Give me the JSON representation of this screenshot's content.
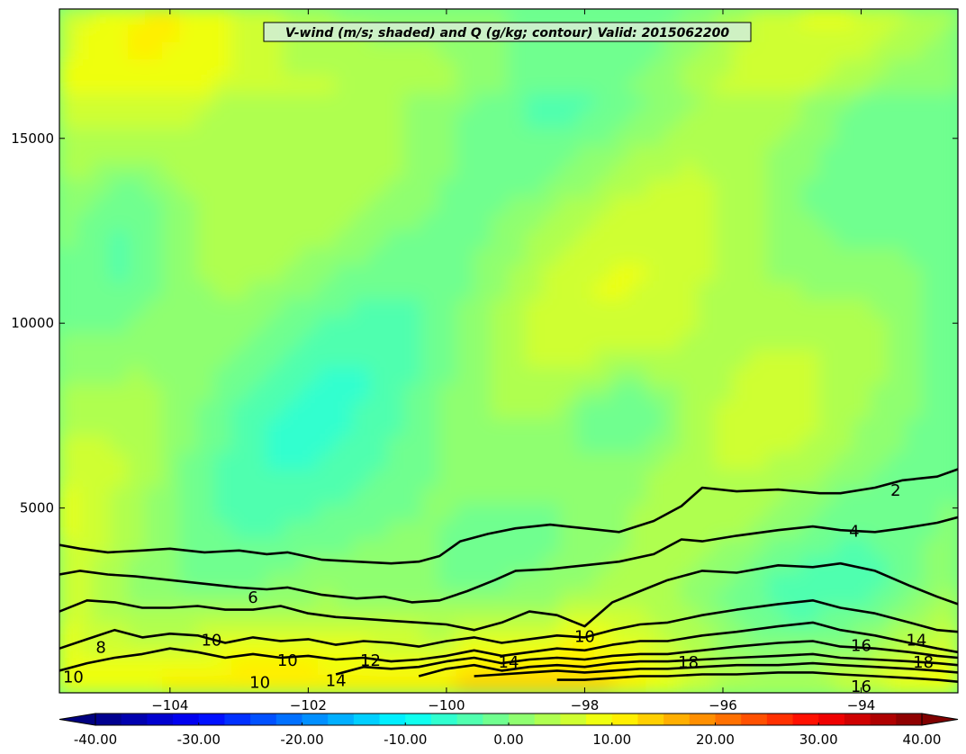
{
  "chart_data": {
    "type": "heatmap",
    "title": "V-wind (m/s; shaded) and Q (g/kg; contour) Valid: 2015062200",
    "xlabel": "",
    "ylabel": "",
    "xlim": [
      -105.6,
      -92.6
    ],
    "ylim": [
      0,
      18500
    ],
    "x_ticks": [
      -104,
      -102,
      -100,
      -98,
      -96,
      -94
    ],
    "x_tick_labels": [
      "−104",
      "−102",
      "−100",
      "−98",
      "−96",
      "−94"
    ],
    "y_ticks": [
      5000,
      10000,
      15000
    ],
    "y_tick_labels": [
      "5000",
      "10000",
      "15000"
    ],
    "shaded_variable": "V-wind (m/s)",
    "contour_variable": "Q (g/kg)",
    "colorbar": {
      "range": [
        -40,
        40
      ],
      "step": 2.5,
      "tick_values": [
        -40,
        -30,
        -20,
        -10,
        0,
        10,
        20,
        30,
        40
      ],
      "tick_labels": [
        "-40.00",
        "-30.00",
        "-20.00",
        "-10.00",
        "0.00",
        "10.00",
        "20.00",
        "30.00",
        "40.00"
      ],
      "colormap": "jet",
      "extend": "both"
    },
    "contours": [
      {
        "level": 2,
        "label": "2",
        "points": [
          [
            -105.6,
            4000
          ],
          [
            -105.3,
            3900
          ],
          [
            -104.9,
            3800
          ],
          [
            -104.4,
            3850
          ],
          [
            -104.0,
            3900
          ],
          [
            -103.5,
            3800
          ],
          [
            -103.0,
            3850
          ],
          [
            -102.6,
            3750
          ],
          [
            -102.3,
            3800
          ],
          [
            -101.8,
            3600
          ],
          [
            -101.3,
            3550
          ],
          [
            -100.8,
            3500
          ],
          [
            -100.4,
            3550
          ],
          [
            -100.1,
            3700
          ],
          [
            -99.8,
            4100
          ],
          [
            -99.4,
            4300
          ],
          [
            -99.0,
            4450
          ],
          [
            -98.5,
            4550
          ],
          [
            -98.0,
            4450
          ],
          [
            -97.5,
            4350
          ],
          [
            -97.0,
            4650
          ],
          [
            -96.6,
            5050
          ],
          [
            -96.3,
            5550
          ],
          [
            -95.8,
            5450
          ],
          [
            -95.2,
            5500
          ],
          [
            -94.6,
            5400
          ],
          [
            -94.3,
            5400
          ],
          [
            -93.8,
            5550
          ],
          [
            -93.4,
            5750
          ],
          [
            -92.9,
            5850
          ],
          [
            -92.6,
            6050
          ]
        ]
      },
      {
        "level": 4,
        "label": "4",
        "points": [
          [
            -105.6,
            3200
          ],
          [
            -105.3,
            3300
          ],
          [
            -104.9,
            3200
          ],
          [
            -104.5,
            3150
          ],
          [
            -104.0,
            3050
          ],
          [
            -103.5,
            2950
          ],
          [
            -103.0,
            2850
          ],
          [
            -102.6,
            2800
          ],
          [
            -102.3,
            2850
          ],
          [
            -101.8,
            2650
          ],
          [
            -101.3,
            2550
          ],
          [
            -100.9,
            2600
          ],
          [
            -100.5,
            2450
          ],
          [
            -100.1,
            2500
          ],
          [
            -99.7,
            2750
          ],
          [
            -99.3,
            3050
          ],
          [
            -99.0,
            3300
          ],
          [
            -98.5,
            3350
          ],
          [
            -98.0,
            3450
          ],
          [
            -97.5,
            3550
          ],
          [
            -97.0,
            3750
          ],
          [
            -96.6,
            4150
          ],
          [
            -96.3,
            4100
          ],
          [
            -95.8,
            4250
          ],
          [
            -95.2,
            4400
          ],
          [
            -94.7,
            4500
          ],
          [
            -94.3,
            4400
          ],
          [
            -93.8,
            4350
          ],
          [
            -93.4,
            4450
          ],
          [
            -92.9,
            4600
          ],
          [
            -92.6,
            4750
          ]
        ]
      },
      {
        "level": 6,
        "label": "6",
        "points": [
          [
            -105.6,
            2200
          ],
          [
            -105.2,
            2500
          ],
          [
            -104.8,
            2450
          ],
          [
            -104.4,
            2300
          ],
          [
            -104.0,
            2300
          ],
          [
            -103.6,
            2350
          ],
          [
            -103.2,
            2250
          ],
          [
            -102.8,
            2250
          ],
          [
            -102.4,
            2350
          ],
          [
            -102.0,
            2150
          ],
          [
            -101.6,
            2050
          ],
          [
            -101.2,
            2000
          ],
          [
            -100.8,
            1950
          ],
          [
            -100.4,
            1900
          ],
          [
            -100.0,
            1850
          ],
          [
            -99.6,
            1700
          ],
          [
            -99.2,
            1900
          ],
          [
            -98.8,
            2200
          ],
          [
            -98.4,
            2100
          ],
          [
            -98.0,
            1800
          ],
          [
            -97.6,
            2450
          ],
          [
            -97.2,
            2750
          ],
          [
            -96.8,
            3050
          ],
          [
            -96.3,
            3300
          ],
          [
            -95.8,
            3250
          ],
          [
            -95.2,
            3450
          ],
          [
            -94.7,
            3400
          ],
          [
            -94.3,
            3500
          ],
          [
            -93.8,
            3300
          ],
          [
            -93.3,
            2900
          ],
          [
            -92.9,
            2600
          ],
          [
            -92.6,
            2400
          ]
        ]
      },
      {
        "level": 8,
        "label": "8",
        "points": [
          [
            -105.6,
            1200
          ],
          [
            -105.2,
            1450
          ],
          [
            -104.8,
            1700
          ],
          [
            -104.4,
            1500
          ],
          [
            -104.0,
            1600
          ],
          [
            -103.6,
            1550
          ],
          [
            -103.2,
            1350
          ],
          [
            -102.8,
            1500
          ],
          [
            -102.4,
            1400
          ],
          [
            -102.0,
            1450
          ],
          [
            -101.6,
            1300
          ],
          [
            -101.2,
            1400
          ],
          [
            -100.8,
            1350
          ],
          [
            -100.4,
            1250
          ],
          [
            -100.0,
            1400
          ],
          [
            -99.6,
            1500
          ],
          [
            -99.2,
            1350
          ],
          [
            -98.8,
            1450
          ],
          [
            -98.4,
            1550
          ],
          [
            -98.0,
            1500
          ],
          [
            -97.6,
            1700
          ],
          [
            -97.2,
            1850
          ],
          [
            -96.8,
            1900
          ],
          [
            -96.3,
            2100
          ],
          [
            -95.8,
            2250
          ],
          [
            -95.2,
            2400
          ],
          [
            -94.7,
            2500
          ],
          [
            -94.3,
            2300
          ],
          [
            -93.8,
            2150
          ],
          [
            -93.3,
            1900
          ],
          [
            -92.9,
            1700
          ],
          [
            -92.6,
            1650
          ]
        ]
      },
      {
        "level": 10,
        "label": "10",
        "points": [
          [
            -105.6,
            600
          ],
          [
            -105.2,
            800
          ],
          [
            -104.8,
            950
          ],
          [
            -104.4,
            1050
          ],
          [
            -104.0,
            1200
          ],
          [
            -103.6,
            1100
          ],
          [
            -103.2,
            950
          ],
          [
            -102.8,
            1050
          ],
          [
            -102.4,
            950
          ],
          [
            -102.0,
            1000
          ],
          [
            -101.6,
            900
          ],
          [
            -101.2,
            950
          ],
          [
            -100.8,
            850
          ],
          [
            -100.4,
            900
          ],
          [
            -100.0,
            1000
          ],
          [
            -99.6,
            1150
          ],
          [
            -99.2,
            1000
          ],
          [
            -98.8,
            1100
          ],
          [
            -98.4,
            1200
          ],
          [
            -98.0,
            1150
          ],
          [
            -97.6,
            1300
          ],
          [
            -97.2,
            1400
          ],
          [
            -96.8,
            1400
          ],
          [
            -96.3,
            1550
          ],
          [
            -95.8,
            1650
          ],
          [
            -95.2,
            1800
          ],
          [
            -94.7,
            1900
          ],
          [
            -94.3,
            1700
          ],
          [
            -93.8,
            1550
          ],
          [
            -93.3,
            1350
          ],
          [
            -92.9,
            1200
          ],
          [
            -92.6,
            1100
          ]
        ]
      },
      {
        "level": 12,
        "label": "12",
        "points": [
          [
            -101.6,
            500
          ],
          [
            -101.2,
            700
          ],
          [
            -100.8,
            650
          ],
          [
            -100.4,
            700
          ],
          [
            -100.0,
            850
          ],
          [
            -99.6,
            950
          ],
          [
            -99.2,
            800
          ],
          [
            -98.8,
            900
          ],
          [
            -98.4,
            950
          ],
          [
            -98.0,
            900
          ],
          [
            -97.6,
            1000
          ],
          [
            -97.2,
            1050
          ],
          [
            -96.8,
            1050
          ],
          [
            -96.3,
            1150
          ],
          [
            -95.8,
            1250
          ],
          [
            -95.2,
            1350
          ],
          [
            -94.7,
            1400
          ],
          [
            -94.3,
            1250
          ],
          [
            -93.8,
            1200
          ],
          [
            -93.3,
            1100
          ],
          [
            -92.9,
            1000
          ],
          [
            -92.6,
            950
          ]
        ]
      },
      {
        "level": 14,
        "label": "14",
        "points": [
          [
            -100.4,
            450
          ],
          [
            -100.0,
            650
          ],
          [
            -99.6,
            750
          ],
          [
            -99.2,
            600
          ],
          [
            -98.8,
            700
          ],
          [
            -98.4,
            750
          ],
          [
            -98.0,
            700
          ],
          [
            -97.6,
            800
          ],
          [
            -97.2,
            850
          ],
          [
            -96.8,
            850
          ],
          [
            -96.3,
            900
          ],
          [
            -95.8,
            950
          ],
          [
            -95.2,
            1000
          ],
          [
            -94.7,
            1050
          ],
          [
            -94.3,
            950
          ],
          [
            -93.8,
            900
          ],
          [
            -93.3,
            850
          ],
          [
            -92.9,
            800
          ],
          [
            -92.6,
            750
          ]
        ]
      },
      {
        "level": 16,
        "label": "16",
        "points": [
          [
            -99.6,
            450
          ],
          [
            -99.2,
            500
          ],
          [
            -98.8,
            550
          ],
          [
            -98.4,
            600
          ],
          [
            -98.0,
            550
          ],
          [
            -97.6,
            600
          ],
          [
            -97.2,
            650
          ],
          [
            -96.8,
            650
          ],
          [
            -96.3,
            700
          ],
          [
            -95.8,
            750
          ],
          [
            -95.2,
            750
          ],
          [
            -94.7,
            800
          ],
          [
            -94.3,
            750
          ],
          [
            -93.8,
            700
          ],
          [
            -93.3,
            650
          ],
          [
            -92.9,
            600
          ],
          [
            -92.6,
            550
          ]
        ]
      },
      {
        "level": 18,
        "label": "18",
        "points": [
          [
            -98.4,
            350
          ],
          [
            -98.0,
            350
          ],
          [
            -97.6,
            400
          ],
          [
            -97.2,
            450
          ],
          [
            -96.8,
            450
          ],
          [
            -96.3,
            500
          ],
          [
            -95.8,
            500
          ],
          [
            -95.2,
            550
          ],
          [
            -94.7,
            550
          ],
          [
            -94.3,
            500
          ],
          [
            -93.8,
            450
          ],
          [
            -93.3,
            400
          ],
          [
            -92.9,
            350
          ],
          [
            -92.6,
            300
          ]
        ]
      }
    ],
    "contour_labels": [
      {
        "text": "2",
        "x": -93.5,
        "y": 5450
      },
      {
        "text": "4",
        "x": -94.1,
        "y": 4350
      },
      {
        "text": "6",
        "x": -102.8,
        "y": 2550
      },
      {
        "text": "8",
        "x": -105.0,
        "y": 1200
      },
      {
        "text": "10",
        "x": -103.4,
        "y": 1400
      },
      {
        "text": "10",
        "x": -102.3,
        "y": 850
      },
      {
        "text": "10",
        "x": -102.7,
        "y": 250
      },
      {
        "text": "10",
        "x": -105.4,
        "y": 400
      },
      {
        "text": "12",
        "x": -101.1,
        "y": 850
      },
      {
        "text": "14",
        "x": -99.1,
        "y": 800
      },
      {
        "text": "14",
        "x": -101.6,
        "y": 300
      },
      {
        "text": "10",
        "x": -98.0,
        "y": 1500
      },
      {
        "text": "18",
        "x": -96.5,
        "y": 800
      },
      {
        "text": "16",
        "x": -94.0,
        "y": 1250
      },
      {
        "text": "14",
        "x": -93.2,
        "y": 1400
      },
      {
        "text": "18",
        "x": -93.1,
        "y": 800
      },
      {
        "text": "16",
        "x": -94.0,
        "y": 150
      }
    ]
  }
}
